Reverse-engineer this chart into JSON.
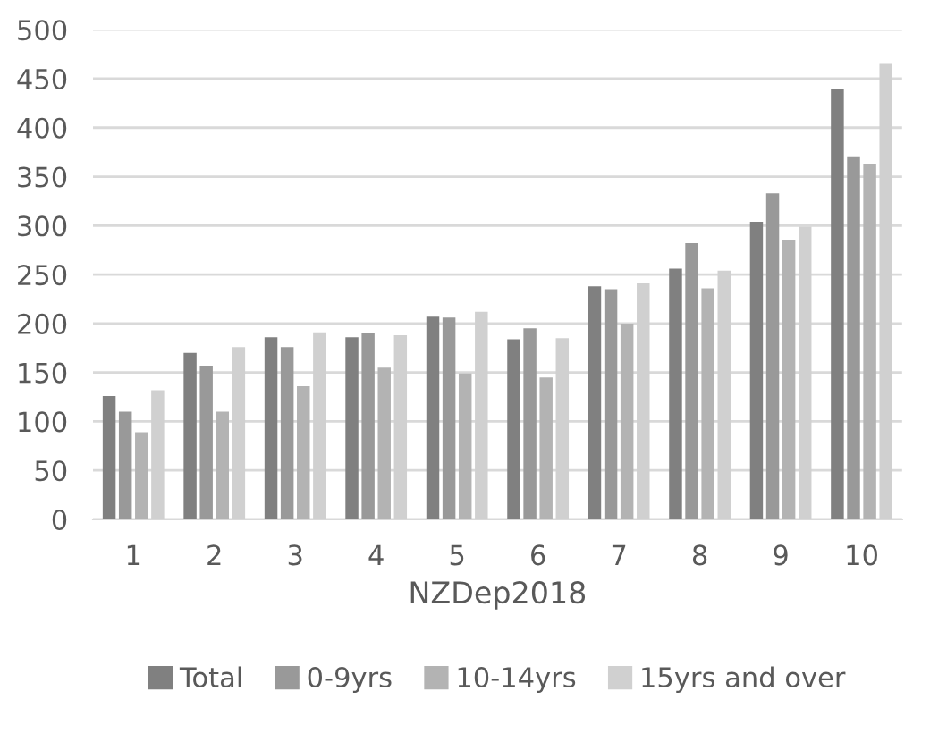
{
  "chart_data": {
    "type": "bar",
    "xlabel": "NZDep2018",
    "categories": [
      "1",
      "2",
      "3",
      "4",
      "5",
      "6",
      "7",
      "8",
      "9",
      "10"
    ],
    "series": [
      {
        "name": "Total",
        "color": "#808080",
        "values": [
          126,
          170,
          186,
          186,
          207,
          184,
          238,
          256,
          304,
          440
        ]
      },
      {
        "name": "0-9yrs",
        "color": "#999999",
        "values": [
          110,
          157,
          176,
          190,
          206,
          195,
          235,
          282,
          333,
          370
        ]
      },
      {
        "name": "10-14yrs",
        "color": "#b3b3b3",
        "values": [
          89,
          110,
          136,
          155,
          149,
          145,
          200,
          236,
          285,
          363
        ]
      },
      {
        "name": "15yrs and over",
        "color": "#d0d0d0",
        "values": [
          132,
          176,
          191,
          188,
          212,
          185,
          241,
          254,
          299,
          465
        ]
      }
    ],
    "ylim": [
      0,
      500
    ],
    "yticks": [
      0,
      50,
      100,
      150,
      200,
      250,
      300,
      350,
      400,
      450,
      500
    ],
    "grid": "y",
    "legend": "bottom"
  }
}
